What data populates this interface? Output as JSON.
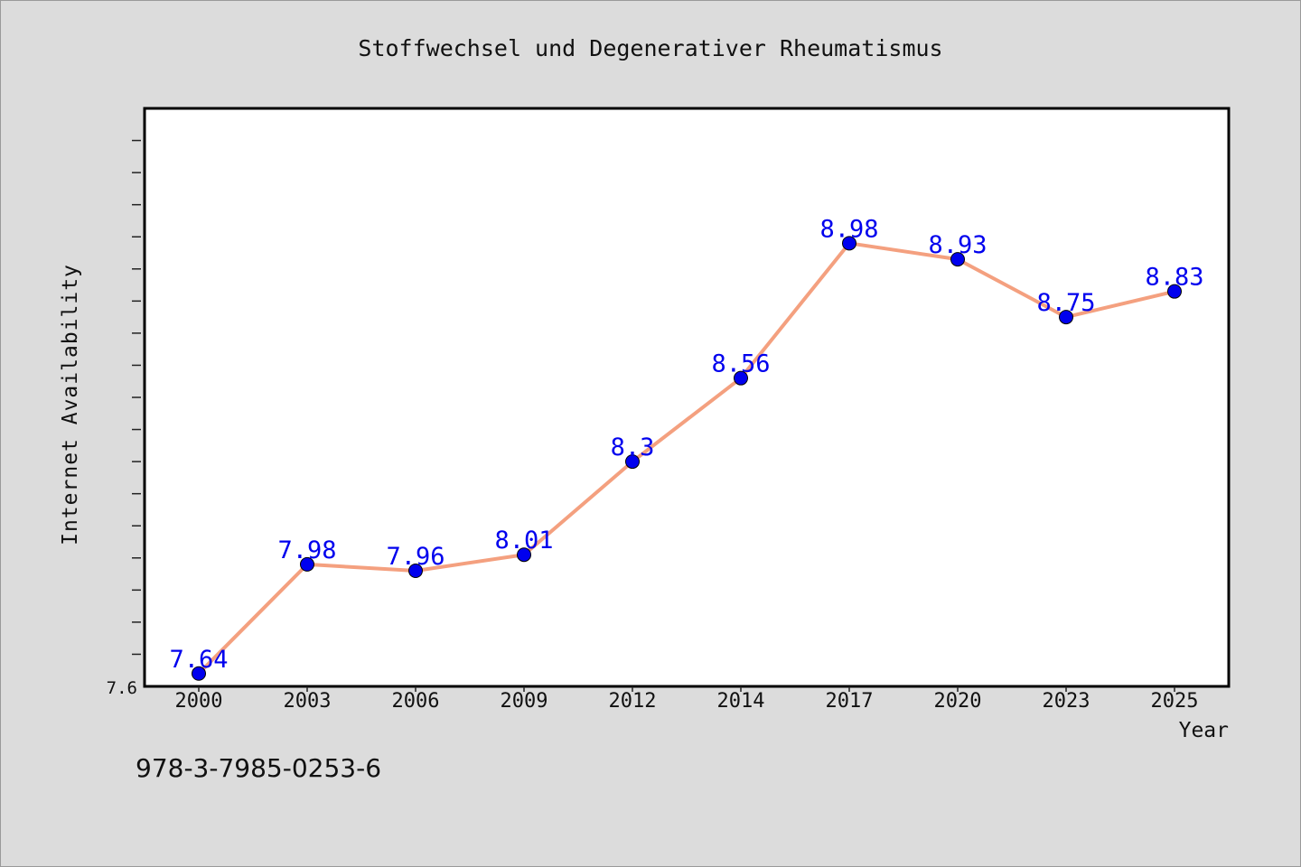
{
  "chart_data": {
    "type": "line",
    "title": "Stoffwechsel und Degenerativer Rheumatismus",
    "xlabel": "Year",
    "ylabel": "Internet Availability",
    "categories": [
      "2000",
      "2003",
      "2006",
      "2009",
      "2012",
      "2014",
      "2017",
      "2020",
      "2023",
      "2025"
    ],
    "series": [
      {
        "values": [
          7.64,
          7.98,
          7.96,
          8.01,
          8.3,
          8.56,
          8.98,
          8.93,
          8.75,
          8.83
        ],
        "labels": [
          "7.64",
          "7.98",
          "7.96",
          "8.01",
          "8.3",
          "8.56",
          "8.98",
          "8.93",
          "8.75",
          "8.83"
        ]
      }
    ],
    "ytick_label": "7.6",
    "ylim": [
      7.6,
      9.4
    ],
    "ytick_step": 0.1,
    "grid": false,
    "line_color": "#f4a07f",
    "marker_color": "#0000ee",
    "label_color": "#0000ee"
  },
  "footer": {
    "code": "978-3-7985-0253-6"
  }
}
